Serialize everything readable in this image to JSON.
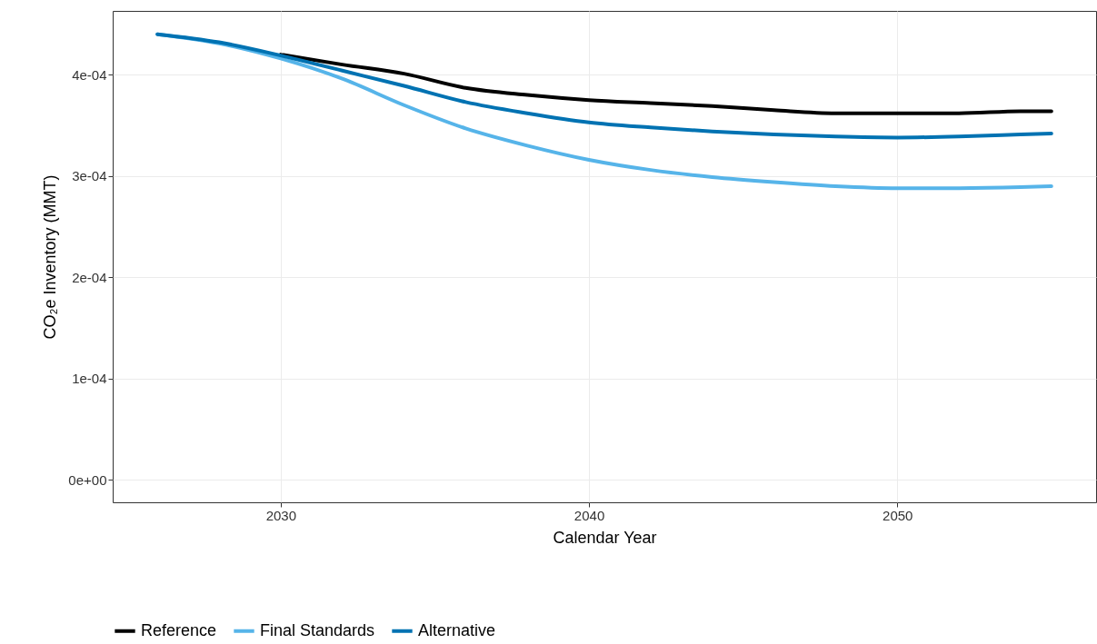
{
  "chart_data": {
    "type": "line",
    "xlabel": "Calendar Year",
    "ylabel": "CO₂e Inventory (MMT)",
    "x": [
      2026,
      2028,
      2030,
      2032,
      2034,
      2036,
      2038,
      2040,
      2042,
      2044,
      2046,
      2048,
      2050,
      2052,
      2054,
      2055
    ],
    "series": [
      {
        "name": "Reference",
        "color": "#000000",
        "values": [
          null,
          null,
          0.00042,
          0.00041,
          0.000401,
          0.000387,
          0.00038,
          0.000375,
          0.000372,
          0.000369,
          0.000365,
          0.000362,
          0.000362,
          0.000362,
          0.000364,
          0.000364
        ]
      },
      {
        "name": "Final Standards",
        "color": "#56b4e9",
        "values": [
          0.00044,
          0.000431,
          0.000416,
          0.000396,
          0.00037,
          0.000347,
          0.00033,
          0.000316,
          0.000306,
          0.000299,
          0.000294,
          0.00029,
          0.000288,
          0.000288,
          0.000289,
          0.00029
        ]
      },
      {
        "name": "Alternative",
        "color": "#0072b2",
        "values": [
          0.00044,
          0.000432,
          0.000419,
          0.000404,
          0.000389,
          0.000373,
          0.000362,
          0.000353,
          0.000348,
          0.000344,
          0.000341,
          0.000339,
          0.000338,
          0.000339,
          0.000341,
          0.000342
        ]
      }
    ],
    "xlim": [
      2024.55,
      2056.45
    ],
    "xticks": [
      2030,
      2040,
      2050
    ],
    "ylim": [
      -2.2e-05,
      0.000463
    ],
    "yticks": [
      {
        "value": 0,
        "label": "0e+00"
      },
      {
        "value": 0.0001,
        "label": "1e-04"
      },
      {
        "value": 0.0002,
        "label": "2e-04"
      },
      {
        "value": 0.0003,
        "label": "3e-04"
      },
      {
        "value": 0.0004,
        "label": "4e-04"
      }
    ],
    "grid": true,
    "legend": "bottom",
    "line_style": "solid",
    "marker": "none"
  }
}
